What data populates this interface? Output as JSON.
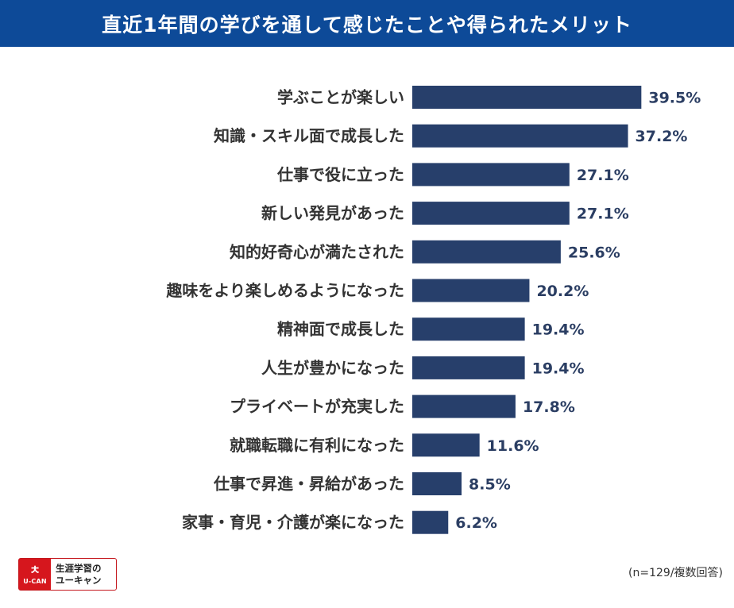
{
  "title": "直近1年間の学びを通して感じたことや得られたメリット",
  "note": "(n=129/複数回答)",
  "logo": {
    "symbol": "ㅊ",
    "mark_text": "U-CAN",
    "line1": "生涯学習の",
    "line2": "ユーキャン"
  },
  "colors": {
    "header": "#0d4a98",
    "bar": "#273f6b",
    "logo_red": "#d6161d"
  },
  "chart_data": {
    "type": "bar",
    "orientation": "horizontal",
    "title": "直近1年間の学びを通して感じたことや得られたメリット",
    "xlabel": "",
    "ylabel": "",
    "unit": "%",
    "xlim": [
      0,
      40
    ],
    "grid": false,
    "categories": [
      "学ぶことが楽しい",
      "知識・スキル面で成長した",
      "仕事で役に立った",
      "新しい発見があった",
      "知的好奇心が満たされた",
      "趣味をより楽しめるようになった",
      "精神面で成長した",
      "人生が豊かになった",
      "プライベートが充実した",
      "就職転職に有利になった",
      "仕事で昇進・昇給があった",
      "家事・育児・介護が楽になった"
    ],
    "values": [
      39.5,
      37.2,
      27.1,
      27.1,
      25.6,
      20.2,
      19.4,
      19.4,
      17.8,
      11.6,
      8.5,
      6.2
    ],
    "value_labels": [
      "39.5%",
      "37.2%",
      "27.1%",
      "27.1%",
      "25.6%",
      "20.2%",
      "19.4%",
      "19.4%",
      "17.8%",
      "11.6%",
      "8.5%",
      "6.2%"
    ]
  }
}
